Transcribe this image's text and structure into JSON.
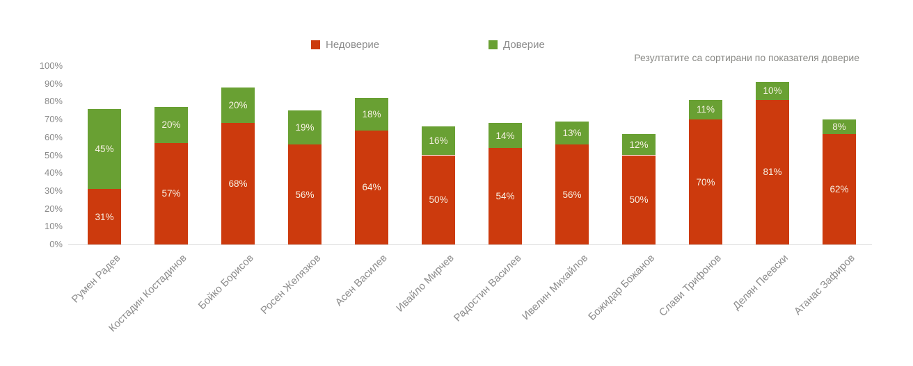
{
  "legend": {
    "distrust_label": "Недоверие",
    "trust_label": "Доверие"
  },
  "note": "Резултатите са сортирани по показателя доверие",
  "colors": {
    "distrust": "#cc3a0d",
    "trust": "#69a033",
    "axis_line": "#d9d9d9",
    "axis_text": "#8a8a8a",
    "bar_label_text": "#f7f0e2"
  },
  "chart_data": {
    "type": "bar",
    "stacked": true,
    "title": "",
    "xlabel": "",
    "ylabel": "",
    "ylim": [
      0,
      100
    ],
    "grid": false,
    "legend_position": "top",
    "note": "Резултатите са сортирани по показателя доверие",
    "y_ticks": [
      "0%",
      "10%",
      "20%",
      "30%",
      "40%",
      "50%",
      "60%",
      "70%",
      "80%",
      "90%",
      "100%"
    ],
    "categories": [
      "Румен Радев",
      "Костадин Костадинов",
      "Бойко Борисов",
      "Росен Желязков",
      "Асен Василев",
      "Ивайло Мирчев",
      "Радостин Василев",
      "Ивелин Михайлов",
      "Божидар Божанов",
      "Слави Трифонов",
      "Делян Пеевски",
      "Атанас Зафиров"
    ],
    "series": [
      {
        "name": "Недоверие",
        "color": "#cc3a0d",
        "values": [
          31,
          57,
          68,
          56,
          64,
          50,
          54,
          56,
          50,
          70,
          81,
          62
        ],
        "labels": [
          "31%",
          "57%",
          "68%",
          "56%",
          "64%",
          "50%",
          "54%",
          "56%",
          "50%",
          "70%",
          "81%",
          "62%"
        ]
      },
      {
        "name": "Доверие",
        "color": "#69a033",
        "values": [
          45,
          20,
          20,
          19,
          18,
          16,
          14,
          13,
          12,
          11,
          10,
          8
        ],
        "labels": [
          "45%",
          "20%",
          "20%",
          "19%",
          "18%",
          "16%",
          "14%",
          "13%",
          "12%",
          "11%",
          "10%",
          "8%"
        ]
      }
    ]
  }
}
